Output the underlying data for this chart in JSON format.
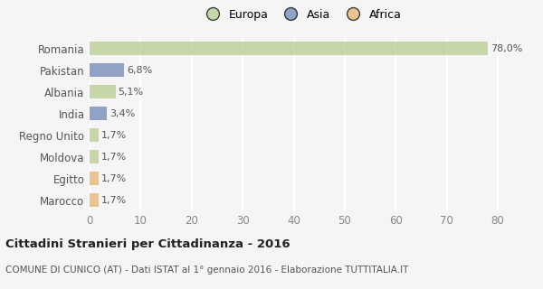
{
  "categories": [
    "Romania",
    "Pakistan",
    "Albania",
    "India",
    "Regno Unito",
    "Moldova",
    "Egitto",
    "Marocco"
  ],
  "values": [
    78.0,
    6.8,
    5.1,
    3.4,
    1.7,
    1.7,
    1.7,
    1.7
  ],
  "labels": [
    "78,0%",
    "6,8%",
    "5,1%",
    "3,4%",
    "1,7%",
    "1,7%",
    "1,7%",
    "1,7%"
  ],
  "colors": [
    "#b5c98e",
    "#6b83b5",
    "#b5c98e",
    "#6b83b5",
    "#b5c98e",
    "#b5c98e",
    "#e8b06a",
    "#e8b06a"
  ],
  "legend_labels": [
    "Europa",
    "Asia",
    "Africa"
  ],
  "legend_colors": [
    "#b5c98e",
    "#6b83b5",
    "#e8b06a"
  ],
  "title": "Cittadini Stranieri per Cittadinanza - 2016",
  "subtitle": "COMUNE DI CUNICO (AT) - Dati ISTAT al 1° gennaio 2016 - Elaborazione TUTTITALIA.IT",
  "xlim": [
    0,
    83
  ],
  "xticks": [
    0,
    10,
    20,
    30,
    40,
    50,
    60,
    70,
    80
  ],
  "bg_color": "#f5f5f5",
  "grid_color": "#ffffff",
  "bar_alpha": 0.72
}
